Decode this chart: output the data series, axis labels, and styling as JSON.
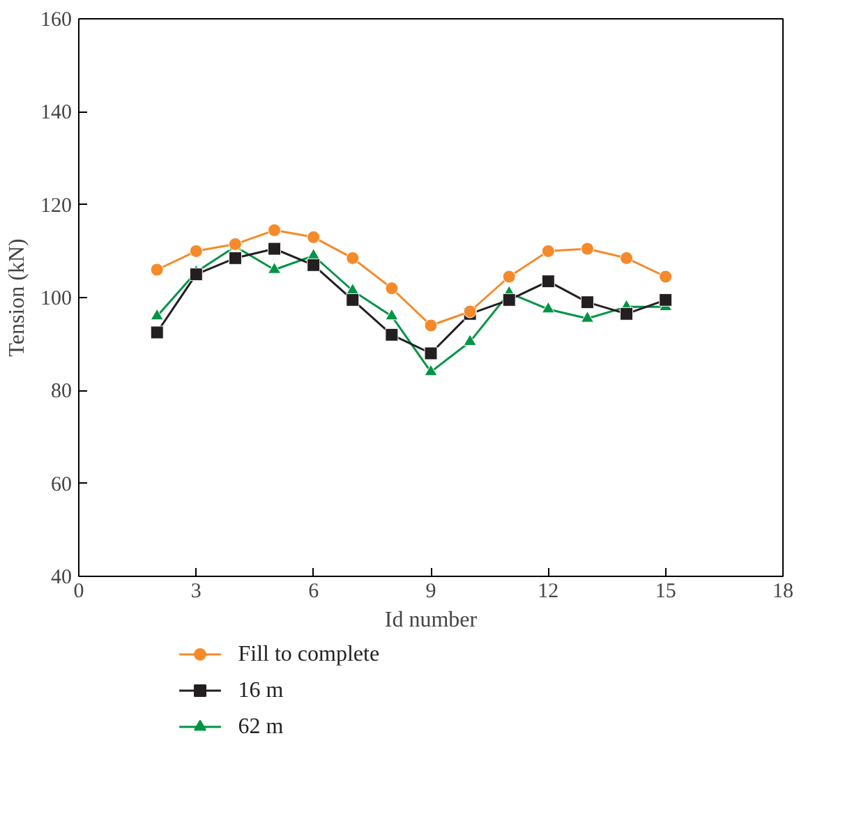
{
  "chart_data": {
    "type": "line",
    "xlabel": "Id number",
    "ylabel": "Tension (kN)",
    "x": [
      2,
      3,
      4,
      5,
      6,
      7,
      8,
      9,
      10,
      11,
      12,
      13,
      14,
      15
    ],
    "xlim": [
      0,
      18
    ],
    "xticks": [
      0,
      3,
      6,
      9,
      12,
      15,
      18
    ],
    "ylim": [
      40,
      160
    ],
    "yticks": [
      40,
      60,
      80,
      100,
      120,
      140,
      160
    ],
    "grid": false,
    "legend": "bottom",
    "line_style": "solid",
    "series": [
      {
        "name": "Fill to complete",
        "color": "#f58a2a",
        "marker": "circle",
        "values": [
          106,
          110,
          111.5,
          114.5,
          113,
          108.5,
          102,
          94,
          97,
          104.5,
          110,
          110.5,
          108.5,
          104.5
        ]
      },
      {
        "name": "16 m",
        "color": "#231f20",
        "marker": "square",
        "values": [
          92.5,
          105,
          108.5,
          110.5,
          107,
          99.5,
          92,
          88,
          96.5,
          99.5,
          103.5,
          99,
          96.5,
          99.5
        ]
      },
      {
        "name": "62 m",
        "color": "#009444",
        "marker": "triangle",
        "values": [
          96,
          105.5,
          111,
          106,
          109,
          101.5,
          96,
          84,
          90.5,
          101,
          97.5,
          95.5,
          98,
          98
        ]
      }
    ]
  }
}
